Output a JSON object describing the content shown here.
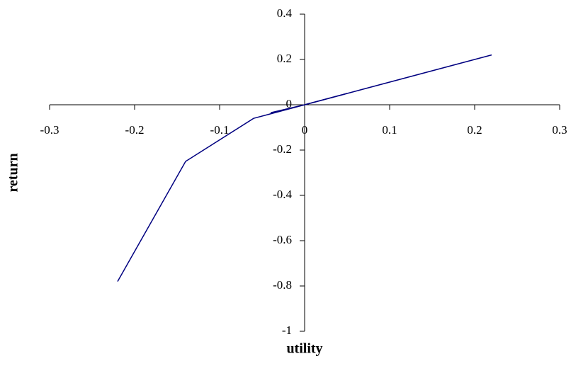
{
  "chart_data": {
    "type": "line",
    "x_label": "utility",
    "y_label": "return",
    "series": [
      {
        "color": "#000080",
        "x": [
          -0.22,
          -0.14,
          -0.06,
          0,
          0.22
        ],
        "values": [
          -0.78,
          -0.25,
          -0.06,
          0,
          0.22
        ]
      },
      {
        "color": "#000080",
        "x": [
          -0.04,
          0,
          0.05
        ],
        "values": [
          -0.035,
          0,
          0.05
        ]
      }
    ],
    "xlim": [
      -0.3,
      0.3
    ],
    "xticks": [
      -0.3,
      -0.2,
      -0.1,
      0,
      0.1,
      0.2,
      0.3
    ],
    "ylim": [
      -1,
      0.4
    ],
    "yticks": [
      -1,
      -0.8,
      -0.6,
      -0.4,
      -0.2,
      0,
      0.2,
      0.4
    ],
    "grid": false
  }
}
